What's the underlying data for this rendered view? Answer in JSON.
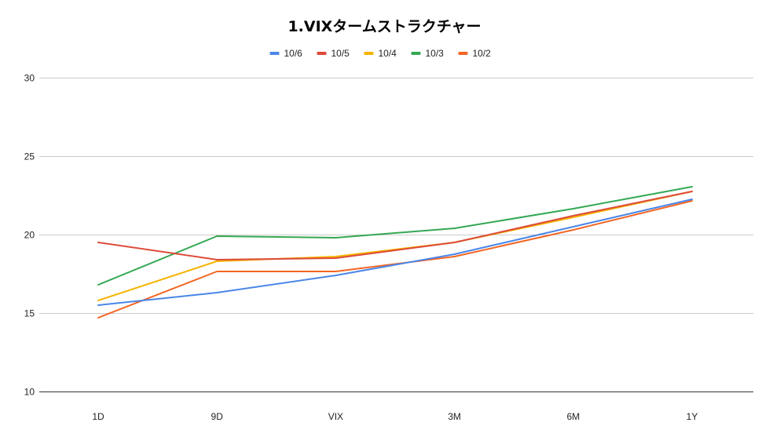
{
  "chart_data": {
    "type": "line",
    "title": "1.VIXタームストラクチャー",
    "xlabel": "",
    "ylabel": "",
    "categories": [
      "1D",
      "9D",
      "VIX",
      "3M",
      "6M",
      "1Y"
    ],
    "ylim": [
      10,
      30
    ],
    "yticks": [
      10,
      15,
      20,
      25,
      30
    ],
    "grid": true,
    "legend_position": "top",
    "series": [
      {
        "name": "10/6",
        "color": "#4a86e8",
        "values": [
          15.5,
          16.3,
          17.4,
          18.75,
          20.5,
          22.25
        ]
      },
      {
        "name": "10/5",
        "color": "#dd4b39",
        "values": [
          19.5,
          18.4,
          18.5,
          19.5,
          21.2,
          22.75
        ]
      },
      {
        "name": "10/4",
        "color": "#f4b400",
        "values": [
          15.8,
          18.3,
          18.6,
          19.5,
          21.1,
          22.75
        ]
      },
      {
        "name": "10/3",
        "color": "#34a853",
        "values": [
          16.8,
          19.9,
          19.8,
          20.4,
          21.65,
          23.05
        ]
      },
      {
        "name": "10/2",
        "color": "#f46524",
        "values": [
          14.7,
          17.65,
          17.65,
          18.6,
          20.3,
          22.15
        ]
      }
    ]
  }
}
